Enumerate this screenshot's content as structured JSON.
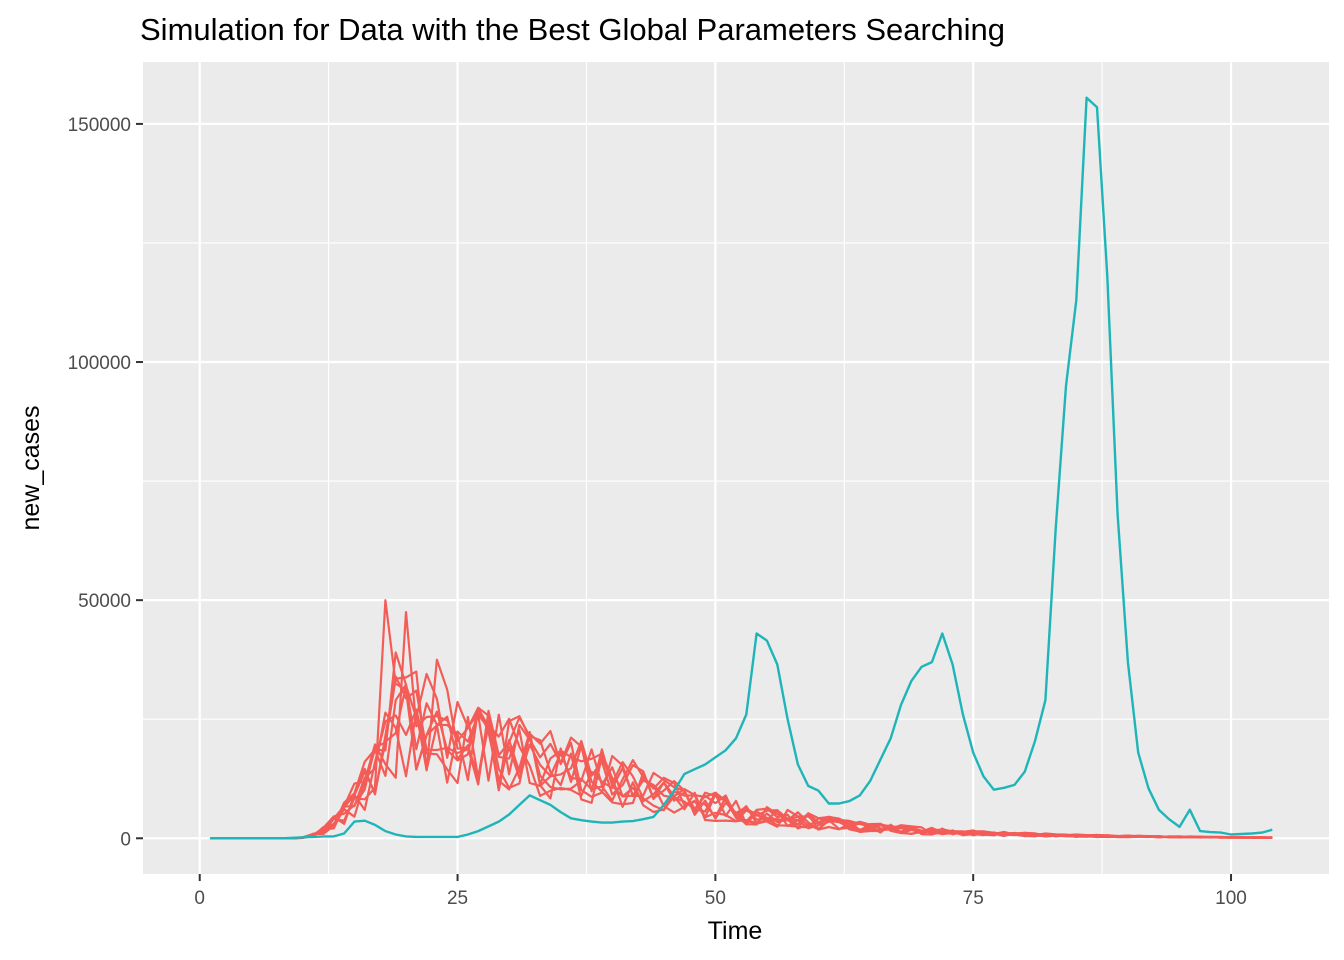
{
  "chart_data": {
    "type": "line",
    "title": "Simulation for Data with the Best Global Parameters Searching",
    "xlabel": "Time",
    "ylabel": "new_cases",
    "xlim": [
      -5.5,
      109.5
    ],
    "ylim": [
      -7500,
      163000
    ],
    "x_ticks": [
      0,
      25,
      50,
      75,
      100
    ],
    "x_tick_labels": [
      "0",
      "25",
      "50",
      "75",
      "100"
    ],
    "y_ticks": [
      0,
      50000,
      100000,
      150000
    ],
    "y_tick_labels": [
      "0",
      "50000",
      "100000",
      "150000"
    ],
    "grid": true,
    "legend": "none",
    "colors": {
      "panel": "#ebebeb",
      "grid": "#ffffff",
      "observed": "#1fb5b8",
      "simulated": "#f35c57"
    },
    "observed": {
      "x": [
        1,
        2,
        3,
        4,
        5,
        6,
        7,
        8,
        9,
        10,
        11,
        12,
        13,
        14,
        15,
        16,
        17,
        18,
        19,
        20,
        21,
        22,
        23,
        24,
        25,
        26,
        27,
        28,
        29,
        30,
        31,
        32,
        33,
        34,
        35,
        36,
        37,
        38,
        39,
        40,
        41,
        42,
        43,
        44,
        45,
        46,
        47,
        48,
        49,
        50,
        51,
        52,
        53,
        54,
        55,
        56,
        57,
        58,
        59,
        60,
        61,
        62,
        63,
        64,
        65,
        66,
        67,
        68,
        69,
        70,
        71,
        72,
        73,
        74,
        75,
        76,
        77,
        78,
        79,
        80,
        81,
        82,
        83,
        84,
        85,
        86,
        87,
        88,
        89,
        90,
        91,
        92,
        93,
        94,
        95,
        96,
        97,
        98,
        99,
        100,
        101,
        102,
        103,
        104
      ],
      "y": [
        0,
        0,
        0,
        0,
        0,
        0,
        0,
        0,
        100,
        200,
        300,
        400,
        400,
        1000,
        3500,
        3700,
        2800,
        1500,
        800,
        400,
        300,
        300,
        300,
        300,
        300,
        800,
        1500,
        2500,
        3500,
        5000,
        7000,
        9000,
        8000,
        7000,
        5500,
        4200,
        3800,
        3500,
        3300,
        3300,
        3500,
        3600,
        4000,
        4500,
        7000,
        10000,
        13500,
        14500,
        15500,
        17000,
        18500,
        21000,
        26000,
        43000,
        41500,
        36500,
        25000,
        15500,
        11000,
        10000,
        7300,
        7300,
        7800,
        9000,
        12000,
        16500,
        21000,
        28000,
        33000,
        36000,
        37000,
        43000,
        36500,
        26000,
        18000,
        13000,
        10200,
        10600,
        11200,
        14000,
        20500,
        29000,
        65000,
        95000,
        113000,
        155500,
        153500,
        118000,
        68000,
        37000,
        18000,
        10500,
        6000,
        4000,
        2400,
        6000,
        1500,
        1300,
        1200,
        800,
        900,
        1000,
        1200,
        1800
      ]
    },
    "simulated_peaks": [
      50000,
      47500,
      39000,
      37500,
      35000,
      34500,
      31000,
      29000,
      27000
    ]
  }
}
